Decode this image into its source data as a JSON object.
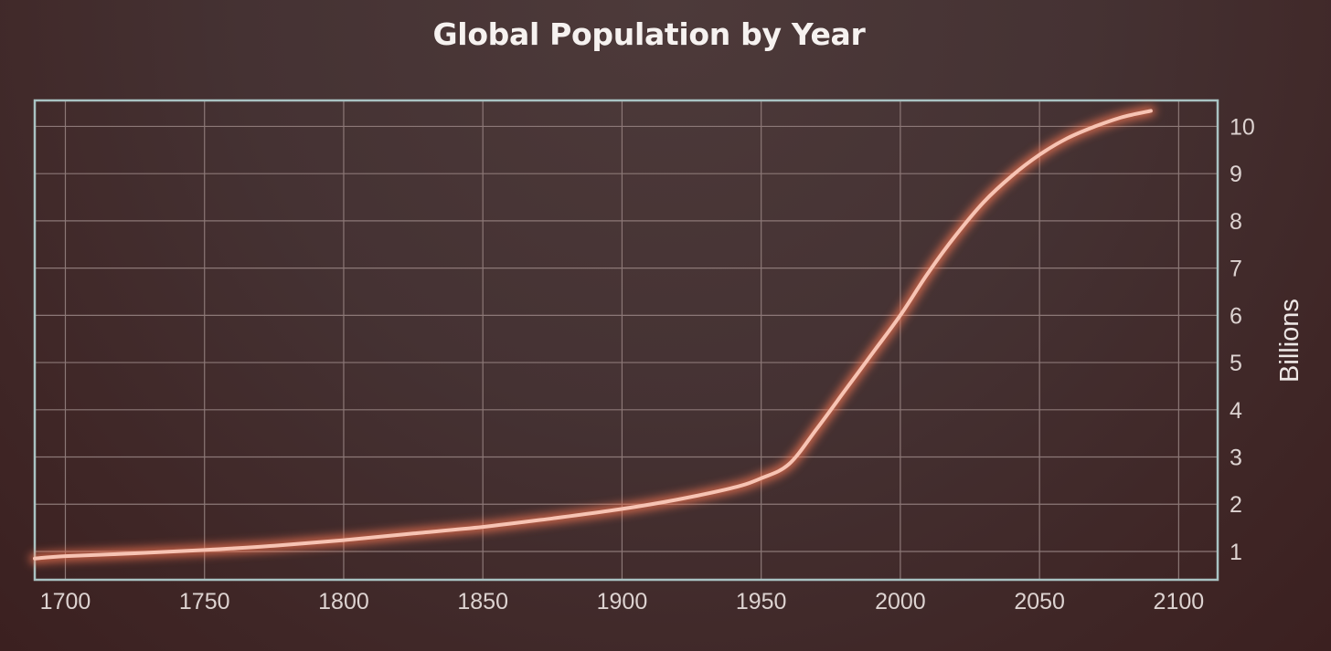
{
  "chart_data": {
    "type": "line",
    "title": "Global Population by Year",
    "xlabel": "",
    "ylabel": "Billions",
    "xlim": [
      1689,
      2114
    ],
    "ylim": [
      0.4,
      10.55
    ],
    "x_ticks": [
      1700,
      1750,
      1800,
      1850,
      1900,
      1950,
      2000,
      2050,
      2100
    ],
    "y_ticks": [
      1,
      2,
      3,
      4,
      5,
      6,
      7,
      8,
      9,
      10
    ],
    "y_axis_position": "right",
    "grid": true,
    "series": [
      {
        "x": [
          1689,
          1700,
          1725,
          1750,
          1775,
          1800,
          1825,
          1850,
          1875,
          1900,
          1920,
          1940,
          1950,
          1960,
          1970,
          1980,
          1990,
          2000,
          2010,
          2020,
          2030,
          2040,
          2050,
          2060,
          2070,
          2080,
          2090
        ],
        "values": [
          0.85,
          0.9,
          0.96,
          1.03,
          1.12,
          1.24,
          1.38,
          1.52,
          1.7,
          1.9,
          2.1,
          2.35,
          2.55,
          2.85,
          3.6,
          4.4,
          5.2,
          6.0,
          6.9,
          7.7,
          8.4,
          8.95,
          9.4,
          9.75,
          10.0,
          10.2,
          10.33
        ]
      }
    ],
    "line_color": "#f7c4b4",
    "glow_color": "#ff7a55"
  },
  "colors": {
    "frame": "#a9c3c3",
    "grid": "#8c7877"
  }
}
